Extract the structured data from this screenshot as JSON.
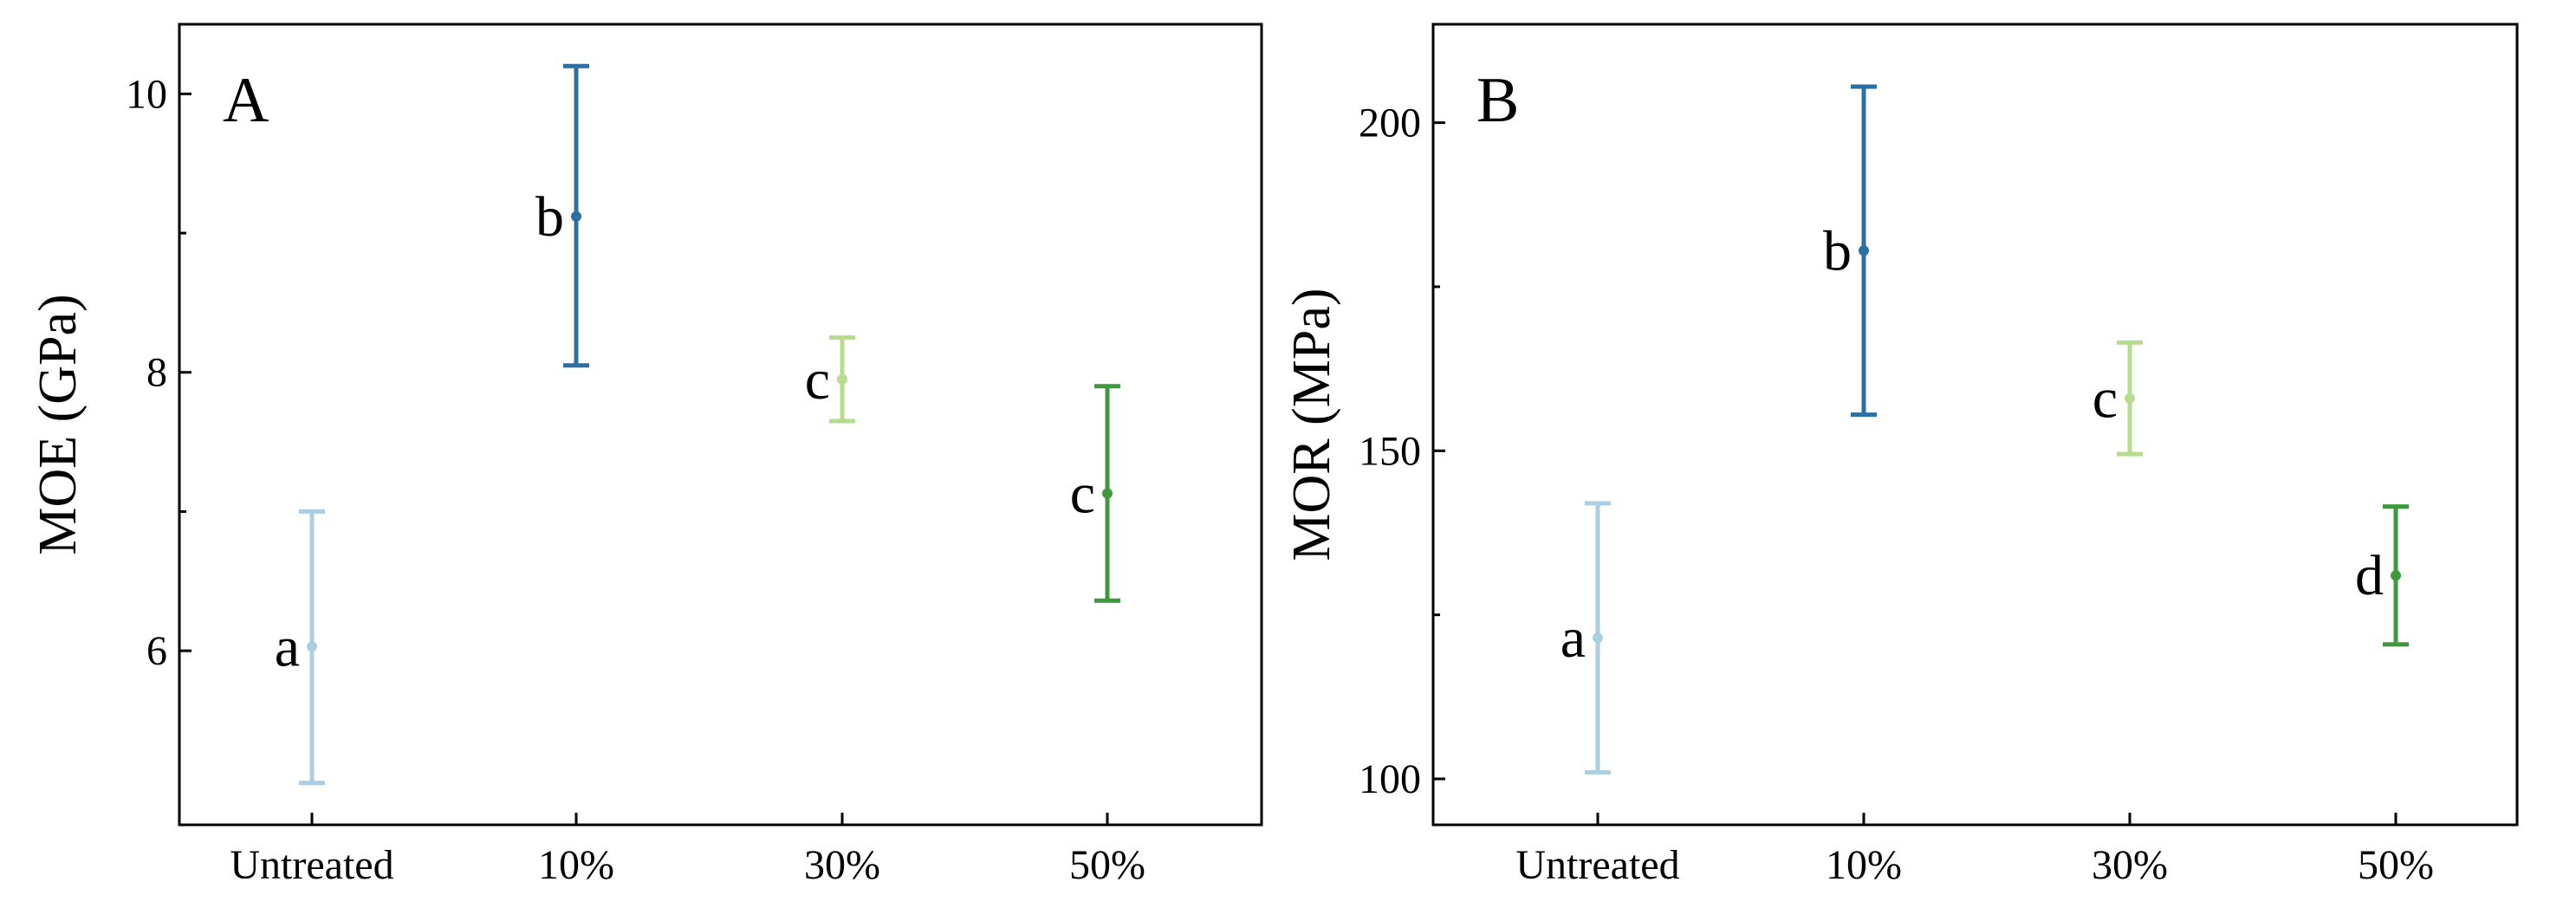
{
  "chart_data": [
    {
      "type": "errorbar",
      "panel_label": "A",
      "xlabel": "",
      "ylabel": "MOE (GPa)",
      "categories": [
        "Untreated",
        "10%",
        "30%",
        "50%"
      ],
      "ylim": [
        4.75,
        10.5
      ],
      "yticks": [
        6,
        8,
        10
      ],
      "points": [
        {
          "category": "Untreated",
          "mean": 6.03,
          "low": 5.05,
          "high": 7.0,
          "letter": "a",
          "color": "#a9cfe0"
        },
        {
          "category": "10%",
          "mean": 9.12,
          "low": 8.05,
          "high": 10.2,
          "letter": "b",
          "color": "#2b6fa3"
        },
        {
          "category": "30%",
          "mean": 7.95,
          "low": 7.65,
          "high": 8.25,
          "letter": "c",
          "color": "#b6dc8e"
        },
        {
          "category": "50%",
          "mean": 7.13,
          "low": 6.36,
          "high": 7.9,
          "letter": "c",
          "color": "#3d9a3c"
        }
      ]
    },
    {
      "type": "errorbar",
      "panel_label": "B",
      "xlabel": "",
      "ylabel": "MOR (MPa)",
      "categories": [
        "Untreated",
        "10%",
        "30%",
        "50%"
      ],
      "ylim": [
        93,
        215
      ],
      "yticks": [
        100,
        150,
        200
      ],
      "points": [
        {
          "category": "Untreated",
          "mean": 121.5,
          "low": 101,
          "high": 142,
          "letter": "a",
          "color": "#a9cfe0"
        },
        {
          "category": "10%",
          "mean": 180.5,
          "low": 155.5,
          "high": 205.5,
          "letter": "b",
          "color": "#2b6fa3"
        },
        {
          "category": "30%",
          "mean": 158,
          "low": 149.5,
          "high": 166.5,
          "letter": "c",
          "color": "#b6dc8e"
        },
        {
          "category": "50%",
          "mean": 131,
          "low": 120.5,
          "high": 141.5,
          "letter": "d",
          "color": "#3d9a3c"
        }
      ]
    }
  ]
}
